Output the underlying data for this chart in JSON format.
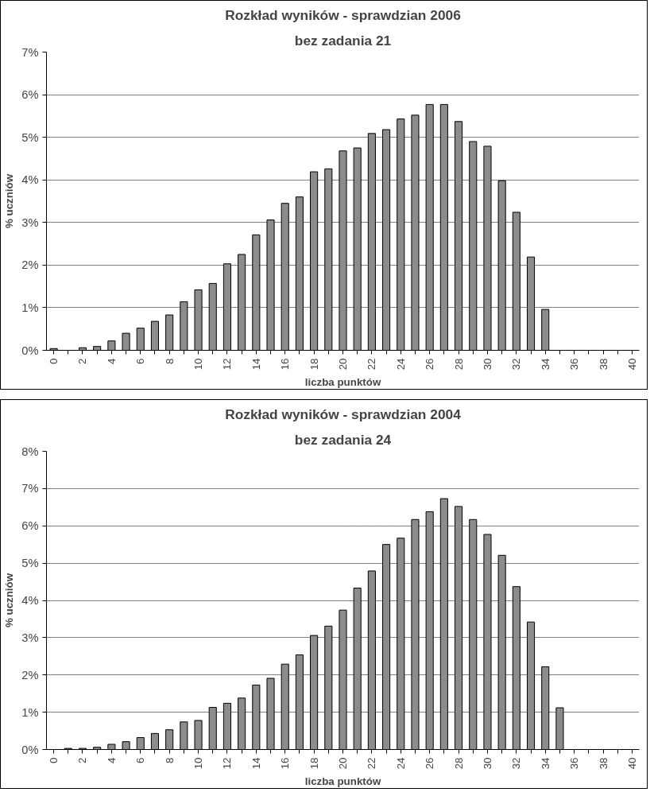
{
  "chart_data": [
    {
      "type": "bar",
      "title": "Rozkład wyników - sprawdzian 2006",
      "subtitle": "bez zadania 21",
      "xlabel": "liczba punktów",
      "ylabel": "% uczniów",
      "categories": [
        "0",
        null,
        "2",
        null,
        "4",
        null,
        "6",
        null,
        "8",
        null,
        "10",
        null,
        "12",
        null,
        "14",
        null,
        "16",
        null,
        "18",
        null,
        "20",
        null,
        "22",
        null,
        "24",
        null,
        "26",
        null,
        "28",
        null,
        "30",
        null,
        "32",
        null,
        "34",
        null,
        "36",
        null,
        "38",
        null,
        "40"
      ],
      "values": [
        0.04,
        0,
        0.06,
        0.09,
        0.22,
        0.4,
        0.52,
        0.68,
        0.83,
        1.14,
        1.42,
        1.57,
        2.03,
        2.25,
        2.71,
        3.06,
        3.45,
        3.6,
        4.19,
        4.26,
        4.68,
        4.75,
        5.09,
        5.18,
        5.43,
        5.52,
        5.77,
        5.77,
        5.37,
        4.9,
        4.79,
        3.98,
        3.24,
        2.19,
        0.96,
        0,
        0,
        0,
        0,
        0,
        0
      ],
      "color": "#8c8c8c",
      "ylim": [
        0,
        7
      ],
      "yticks": [
        {
          "value": 0,
          "label": "0%"
        },
        {
          "value": 1,
          "label": "1%"
        },
        {
          "value": 2,
          "label": "2%"
        },
        {
          "value": 3,
          "label": "3%"
        },
        {
          "value": 4,
          "label": "4%"
        },
        {
          "value": 5,
          "label": "5%"
        },
        {
          "value": 6,
          "label": "6%"
        },
        {
          "value": 7,
          "label": "7%"
        }
      ],
      "grid": "y"
    },
    {
      "type": "bar",
      "title": "Rozkład wyników - sprawdzian 2004",
      "subtitle": "bez zadania 24",
      "xlabel": "liczba punktów",
      "ylabel": "% uczniów",
      "categories": [
        "0",
        null,
        "2",
        null,
        "4",
        null,
        "6",
        null,
        "8",
        null,
        "10",
        null,
        "12",
        null,
        "14",
        null,
        "16",
        null,
        "18",
        null,
        "20",
        null,
        "22",
        null,
        "24",
        null,
        "26",
        null,
        "28",
        null,
        "30",
        null,
        "32",
        null,
        "34",
        null,
        "36",
        null,
        "38",
        null,
        "40"
      ],
      "values": [
        0,
        0.03,
        0.03,
        0.06,
        0.14,
        0.21,
        0.32,
        0.43,
        0.53,
        0.74,
        0.78,
        1.13,
        1.24,
        1.38,
        1.73,
        1.91,
        2.29,
        2.54,
        3.06,
        3.31,
        3.74,
        4.33,
        4.79,
        5.5,
        5.67,
        6.17,
        6.38,
        6.73,
        6.52,
        6.17,
        5.77,
        5.21,
        4.37,
        3.42,
        2.22,
        1.12,
        0,
        0,
        0,
        0,
        0
      ],
      "color": "#8c8c8c",
      "ylim": [
        0,
        8
      ],
      "yticks": [
        {
          "value": 0,
          "label": "0%"
        },
        {
          "value": 1,
          "label": "1%"
        },
        {
          "value": 2,
          "label": "2%"
        },
        {
          "value": 3,
          "label": "3%"
        },
        {
          "value": 4,
          "label": "4%"
        },
        {
          "value": 5,
          "label": "5%"
        },
        {
          "value": 6,
          "label": "6%"
        },
        {
          "value": 7,
          "label": "7%"
        },
        {
          "value": 8,
          "label": "8%"
        }
      ],
      "grid": "y"
    }
  ]
}
